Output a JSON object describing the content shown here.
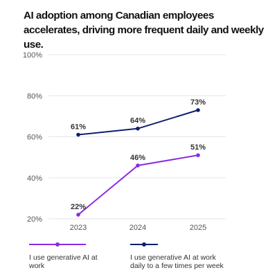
{
  "chart_data": {
    "type": "line",
    "title": "AI adoption among Canadian employees accelerates, driving more frequent daily and weekly use.",
    "x": [
      "2023",
      "2024",
      "2025"
    ],
    "ylim": [
      20,
      100
    ],
    "yticks": [
      "20%",
      "40%",
      "60%",
      "80%",
      "100%"
    ],
    "grid": true,
    "legend_position": "bottom",
    "series": [
      {
        "name": "I use generative AI at work",
        "values": [
          22,
          46,
          51
        ],
        "labels": [
          "22%",
          "46%",
          "51%"
        ],
        "color": "#8a2be2"
      },
      {
        "name": "I use generative AI at work daily to a few times per week",
        "values": [
          61,
          64,
          73
        ],
        "labels": [
          "61%",
          "64%",
          "73%"
        ],
        "color": "#0d1f6e"
      }
    ]
  },
  "colors": {
    "grid": "#e6e6e6",
    "axis_text": "#555555"
  }
}
